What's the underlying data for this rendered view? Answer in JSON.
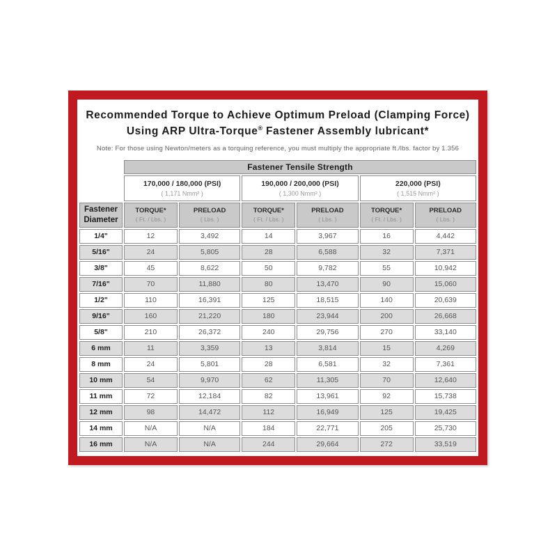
{
  "header": {
    "title_line1": "Recommended Torque to Achieve Optimum Preload (Clamping Force)",
    "title_line2_prefix": "Using ARP Ultra-Torque",
    "title_line2_reg": "®",
    "title_line2_suffix": " Fastener Assembly lubricant*",
    "note": "Note: For those using Newton/meters as a torquing reference, you must multiply the appropriate ft./lbs. factor by 1.356"
  },
  "table": {
    "tensile_strength_header": "Fastener Tensile Strength",
    "diameter_header": "Fastener Diameter",
    "strength_groups": [
      {
        "psi": "170,000 / 180,000 (PSI)",
        "nmm2": "( 1,171 Nmm² )"
      },
      {
        "psi": "190,000 / 200,000 (PSI)",
        "nmm2": "( 1,300 Nmm² )"
      },
      {
        "psi": "220,000 (PSI)",
        "nmm2": "( 1,515 Nmm² )"
      }
    ],
    "column_headers": {
      "torque": "TORQUE*",
      "torque_unit": "( Ft. / Lbs. )",
      "preload": "PRELOAD",
      "preload_unit": "( Lbs. )"
    },
    "rows": [
      {
        "diameter": "1/4\"",
        "values": [
          "12",
          "3,492",
          "14",
          "3,967",
          "16",
          "4,442"
        ]
      },
      {
        "diameter": "5/16\"",
        "values": [
          "24",
          "5,805",
          "28",
          "6,588",
          "32",
          "7,371"
        ]
      },
      {
        "diameter": "3/8\"",
        "values": [
          "45",
          "8,622",
          "50",
          "9,782",
          "55",
          "10,942"
        ]
      },
      {
        "diameter": "7/16\"",
        "values": [
          "70",
          "11,880",
          "80",
          "13,470",
          "90",
          "15,060"
        ]
      },
      {
        "diameter": "1/2\"",
        "values": [
          "110",
          "16,391",
          "125",
          "18,515",
          "140",
          "20,639"
        ]
      },
      {
        "diameter": "9/16\"",
        "values": [
          "160",
          "21,220",
          "180",
          "23,944",
          "200",
          "26,668"
        ]
      },
      {
        "diameter": "5/8\"",
        "values": [
          "210",
          "26,372",
          "240",
          "29,756",
          "270",
          "33,140"
        ]
      },
      {
        "diameter": "6 mm",
        "values": [
          "11",
          "3,359",
          "13",
          "3,814",
          "15",
          "4,269"
        ]
      },
      {
        "diameter": "8 mm",
        "values": [
          "24",
          "5,801",
          "28",
          "6,581",
          "32",
          "7,361"
        ]
      },
      {
        "diameter": "10 mm",
        "values": [
          "54",
          "9,970",
          "62",
          "11,305",
          "70",
          "12,640"
        ]
      },
      {
        "diameter": "11 mm",
        "values": [
          "72",
          "12,184",
          "82",
          "13,961",
          "92",
          "15,738"
        ]
      },
      {
        "diameter": "12 mm",
        "values": [
          "98",
          "14,472",
          "112",
          "16,949",
          "125",
          "19,425"
        ]
      },
      {
        "diameter": "14 mm",
        "values": [
          "N/A",
          "N/A",
          "184",
          "22,771",
          "205",
          "25,730"
        ]
      },
      {
        "diameter": "16 mm",
        "values": [
          "N/A",
          "N/A",
          "244",
          "29,664",
          "272",
          "33,519"
        ]
      }
    ]
  },
  "colors": {
    "frame_red": "#C0191F",
    "header_gray": "#C9C9C9",
    "row_alt_gray": "#DCDCDC",
    "border_gray": "#8C8C8C"
  }
}
